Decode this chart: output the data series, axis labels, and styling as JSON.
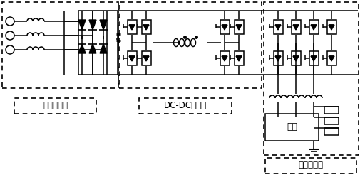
{
  "bg_color": "#ffffff",
  "fig_width": 5.06,
  "fig_height": 2.56,
  "dpi": 100,
  "label_input": "输入整流级",
  "label_dcdc": "DC-DC变换级",
  "label_output": "输出逆变级",
  "label_load": "负载"
}
